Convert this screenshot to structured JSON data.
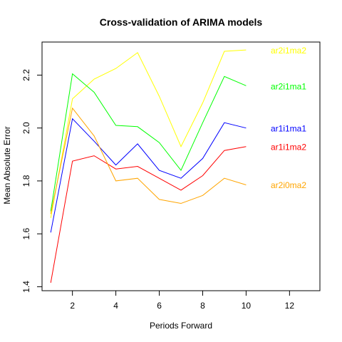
{
  "chart_data": {
    "type": "line",
    "title": "Cross-validation of ARIMA models",
    "xlabel": "Periods Forward",
    "ylabel": "Mean Absolute Error",
    "xlim": [
      0.6,
      13.4
    ],
    "ylim": [
      1.385,
      2.325
    ],
    "x_ticks": [
      2,
      4,
      6,
      8,
      10,
      12
    ],
    "y_ticks": [
      1.4,
      1.6,
      1.8,
      2.0,
      2.2
    ],
    "x_tick_labels": [
      "2",
      "4",
      "6",
      "8",
      "10",
      "12"
    ],
    "y_tick_labels": [
      "1.4",
      "1.6",
      "1.8",
      "2.0",
      "2.2"
    ],
    "grid": false,
    "legend": "direct labels at right end of lines",
    "x": [
      1,
      2,
      3,
      4,
      5,
      6,
      7,
      8,
      9,
      10
    ],
    "series": [
      {
        "name": "ar2i1ma2",
        "color": "#ffff00",
        "label_y": 2.293,
        "values": [
          1.66,
          2.11,
          2.185,
          2.225,
          2.285,
          2.12,
          1.93,
          2.095,
          2.29,
          2.295
        ]
      },
      {
        "name": "ar2i1ma1",
        "color": "#00ff00",
        "label_y": 2.156,
        "values": [
          1.685,
          2.205,
          2.135,
          2.01,
          2.005,
          1.945,
          1.84,
          2.02,
          2.195,
          2.16
        ]
      },
      {
        "name": "ar1i1ma1",
        "color": "#0000ff",
        "label_y": 1.998,
        "values": [
          1.605,
          2.035,
          1.95,
          1.86,
          1.94,
          1.84,
          1.81,
          1.885,
          2.02,
          2.0
        ]
      },
      {
        "name": "ar1i1ma2",
        "color": "#ff0000",
        "label_y": 1.928,
        "values": [
          1.415,
          1.875,
          1.895,
          1.845,
          1.855,
          1.81,
          1.765,
          1.82,
          1.915,
          1.93
        ]
      },
      {
        "name": "ar2i0ma2",
        "color": "#ffa500",
        "label_y": 1.783,
        "values": [
          1.675,
          2.075,
          1.97,
          1.8,
          1.81,
          1.73,
          1.715,
          1.745,
          1.81,
          1.785
        ]
      }
    ]
  }
}
